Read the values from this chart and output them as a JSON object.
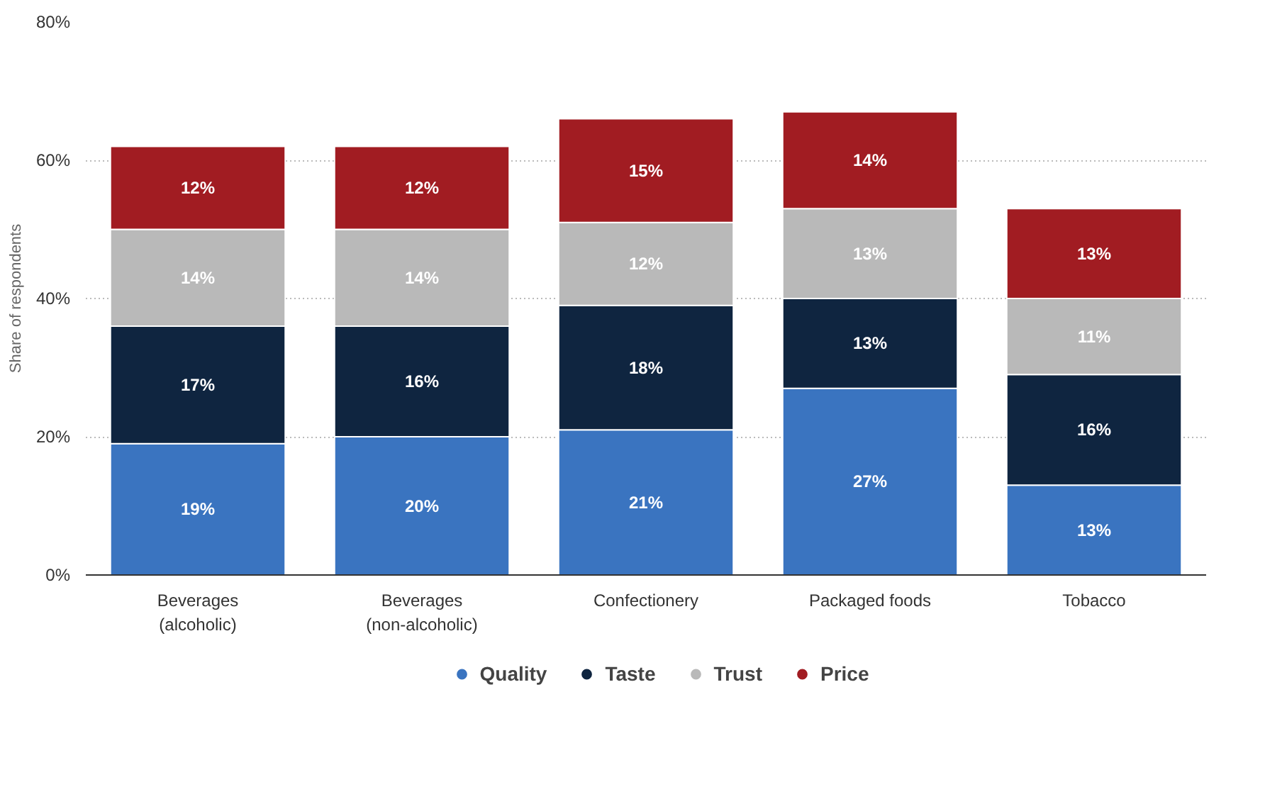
{
  "chart_data": {
    "type": "bar",
    "stacked": true,
    "ylabel": "Share of respondents",
    "categories": [
      "Beverages\n(alcoholic)",
      "Beverages\n(non-alcoholic)",
      "Confectionery",
      "Packaged foods",
      "Tobacco"
    ],
    "series": [
      {
        "name": "Quality",
        "color": "#3a74c0",
        "values": [
          19,
          20,
          21,
          27,
          13
        ],
        "value_labels": [
          "19%",
          "20%",
          "21%",
          "27%",
          "13%"
        ]
      },
      {
        "name": "Taste",
        "color": "#0f2540",
        "values": [
          17,
          16,
          18,
          13,
          16
        ],
        "value_labels": [
          "17%",
          "16%",
          "18%",
          "13%",
          "16%"
        ]
      },
      {
        "name": "Trust",
        "color": "#b9b9b9",
        "values": [
          14,
          14,
          12,
          13,
          11
        ],
        "value_labels": [
          "14%",
          "14%",
          "12%",
          "13%",
          "11%"
        ]
      },
      {
        "name": "Price",
        "color": "#a11c22",
        "values": [
          12,
          12,
          15,
          14,
          13
        ],
        "value_labels": [
          "12%",
          "12%",
          "15%",
          "14%",
          "13%"
        ]
      }
    ],
    "ylim": [
      0,
      80
    ],
    "yticks": [
      {
        "value": 0,
        "label": "0%"
      },
      {
        "value": 20,
        "label": "20%"
      },
      {
        "value": 40,
        "label": "40%"
      },
      {
        "value": 60,
        "label": "60%"
      },
      {
        "value": 80,
        "label": "80%"
      }
    ],
    "grid": "y",
    "legend": "bottom"
  }
}
